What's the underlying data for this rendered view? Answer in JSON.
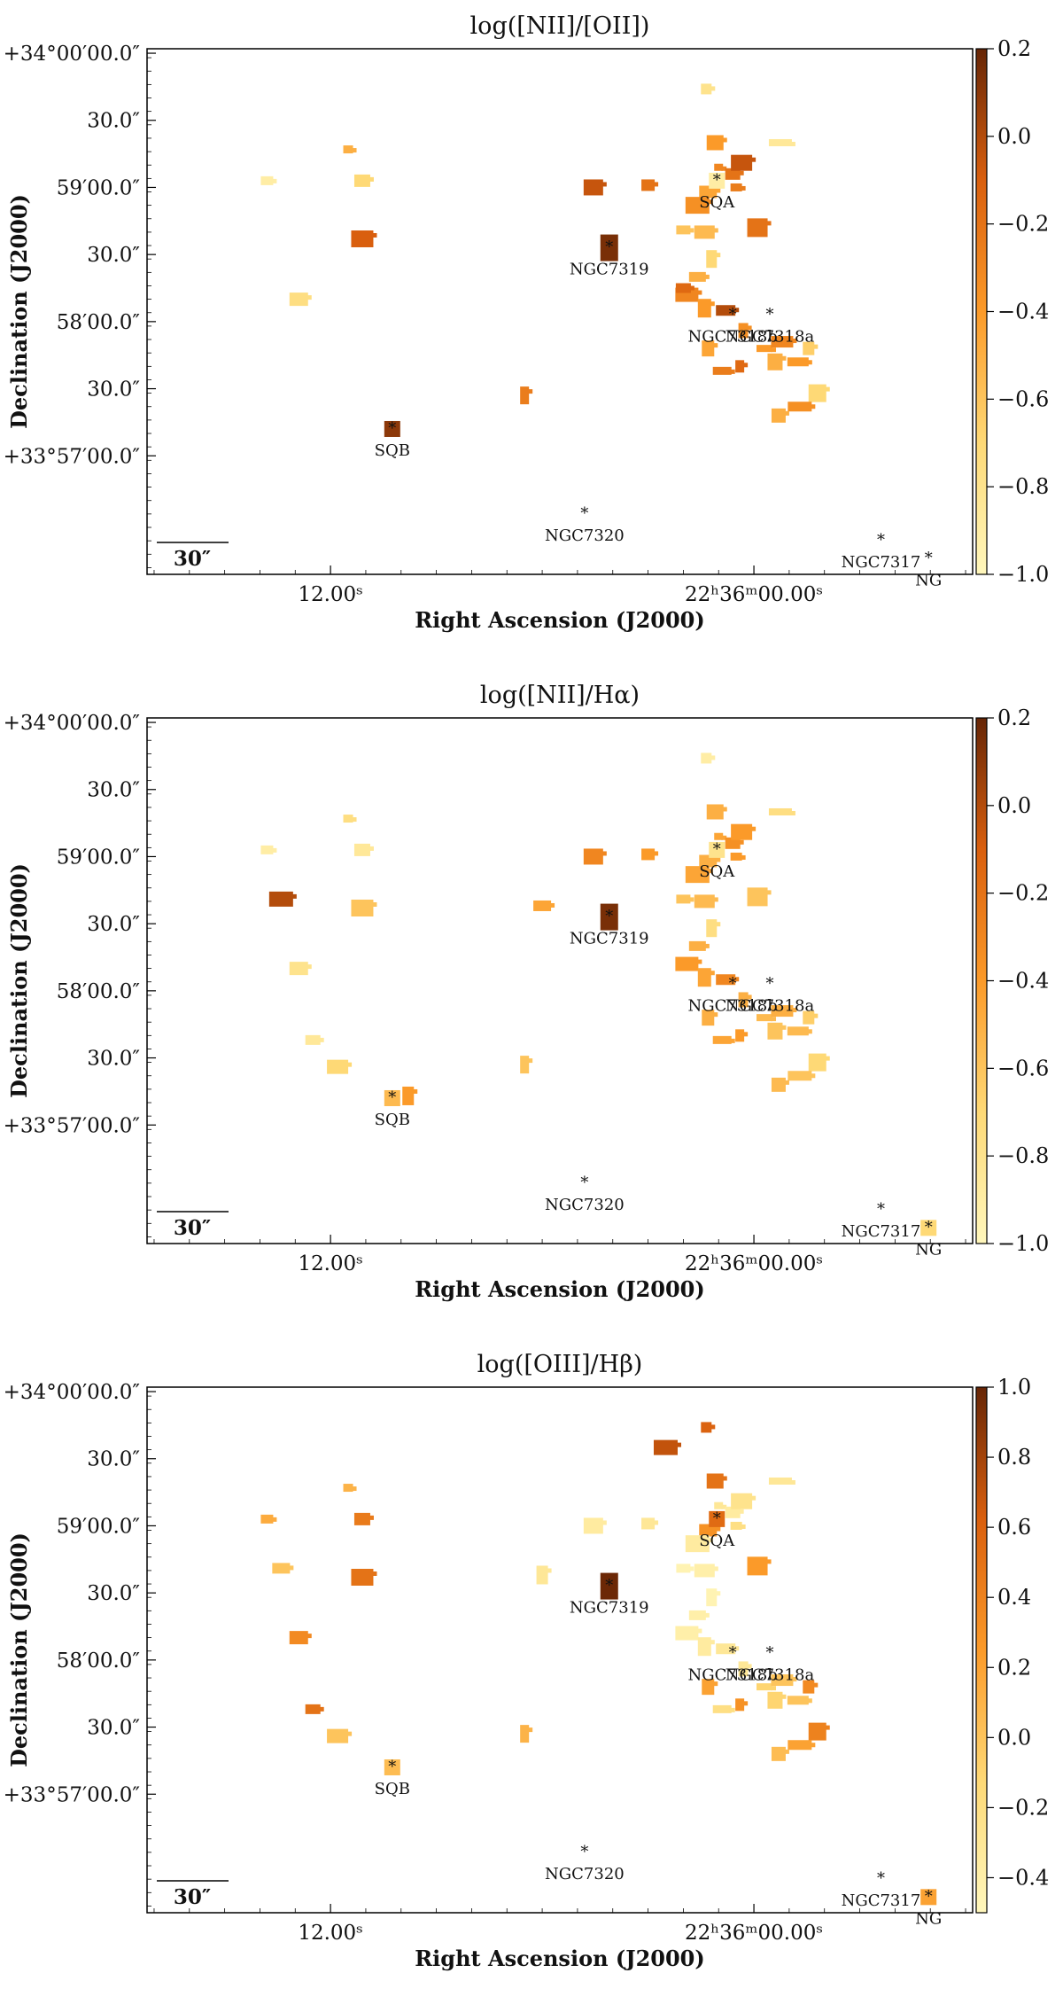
{
  "chart_data": [
    {
      "type": "heatmap",
      "title": "log([NII]/[OII])",
      "xlabel": "Right Ascension (J2000)",
      "ylabel": "Declination (J2000)",
      "xticks": [
        "12.00ˢ",
        "22ʰ36ᵐ00.00ˢ"
      ],
      "yticks": [
        "+34°00′00.0″",
        "30.0″",
        "59′00.0″",
        "30.0″",
        "58′00.0″",
        "30.0″",
        "+33°57′00.0″"
      ],
      "colorbar": {
        "min": -1.0,
        "max": 0.2,
        "ticks": [
          "0.2",
          "0.0",
          "−0.2",
          "−0.4",
          "−0.6",
          "−0.8",
          "−1.0"
        ]
      },
      "scalebar": "30″",
      "galaxies": [
        {
          "name": "SQA",
          "ra_s": 1.05,
          "dec_s": 63,
          "value": -0.9
        },
        {
          "name": "NGC7319",
          "ra_s": 4.1,
          "dec_s": 33,
          "value": 0.15
        },
        {
          "name": "NGC7318b",
          "ra_s": 0.6,
          "dec_s": 3
        },
        {
          "name": "NGC7318a",
          "ra_s": -0.45,
          "dec_s": 3
        },
        {
          "name": "SQB",
          "ra_s": 10.25,
          "dec_s": -48,
          "value": 0.1
        },
        {
          "name": "NGC7320",
          "ra_s": 4.8,
          "dec_s": -86
        },
        {
          "name": "NGC7317",
          "ra_s": -3.6,
          "dec_s": -98
        },
        {
          "name": "NG",
          "ra_s": -4.95,
          "dec_s": -106
        }
      ],
      "regions": [
        {
          "ra_s": 1.0,
          "dec_s": 69,
          "value": -0.3
        },
        {
          "ra_s": 0.6,
          "dec_s": 66,
          "value": -0.2
        },
        {
          "ra_s": 0.35,
          "dec_s": 71,
          "value": -0.05
        },
        {
          "ra_s": 0.5,
          "dec_s": 60,
          "value": -0.25
        },
        {
          "ra_s": 1.3,
          "dec_s": 58,
          "value": -0.45
        },
        {
          "ra_s": 1.6,
          "dec_s": 52,
          "value": -0.35
        },
        {
          "ra_s": 2.0,
          "dec_s": 41,
          "value": -0.6
        },
        {
          "ra_s": 1.4,
          "dec_s": 40,
          "value": -0.55
        },
        {
          "ra_s": 1.2,
          "dec_s": 28,
          "value": -0.7
        },
        {
          "ra_s": 1.6,
          "dec_s": 20,
          "value": -0.5
        },
        {
          "ra_s": 1.9,
          "dec_s": 12,
          "value": -0.3
        },
        {
          "ra_s": 1.4,
          "dec_s": 6,
          "value": -0.4
        },
        {
          "ra_s": 0.8,
          "dec_s": 5,
          "value": 0.0
        },
        {
          "ra_s": 0.3,
          "dec_s": -4,
          "value": -0.35
        },
        {
          "ra_s": -0.3,
          "dec_s": -12,
          "value": -0.4
        },
        {
          "ra_s": -0.8,
          "dec_s": -9,
          "value": -0.3
        },
        {
          "ra_s": 1.3,
          "dec_s": -12,
          "value": -0.45
        },
        {
          "ra_s": 0.9,
          "dec_s": -22,
          "value": -0.25
        },
        {
          "ra_s": 0.4,
          "dec_s": -20,
          "value": -0.15
        },
        {
          "ra_s": -0.6,
          "dec_s": -18,
          "value": -0.5
        },
        {
          "ra_s": -1.25,
          "dec_s": -18,
          "value": -0.4
        },
        {
          "ra_s": -1.55,
          "dec_s": -12,
          "value": -0.65
        },
        {
          "ra_s": -1.8,
          "dec_s": -32,
          "value": -0.7
        },
        {
          "ra_s": -1.3,
          "dec_s": -38,
          "value": -0.35
        },
        {
          "ra_s": -0.7,
          "dec_s": -42,
          "value": -0.5
        },
        {
          "ra_s": -0.1,
          "dec_s": 42,
          "value": -0.2
        },
        {
          "ra_s": 1.35,
          "dec_s": 104,
          "value": -0.8
        },
        {
          "ra_s": 1.1,
          "dec_s": 80,
          "value": -0.4
        },
        {
          "ra_s": -0.75,
          "dec_s": 80,
          "value": -0.85
        },
        {
          "ra_s": 3.0,
          "dec_s": 61,
          "value": -0.2
        },
        {
          "ra_s": 4.55,
          "dec_s": 60,
          "value": -0.05
        },
        {
          "ra_s": 11.5,
          "dec_s": 77,
          "value": -0.5
        },
        {
          "ra_s": 11.1,
          "dec_s": 63,
          "value": -0.7
        },
        {
          "ra_s": 11.1,
          "dec_s": 37,
          "value": -0.1
        },
        {
          "ra_s": 13.8,
          "dec_s": 63,
          "value": -0.9
        },
        {
          "ra_s": 12.9,
          "dec_s": 10,
          "value": -0.75
        },
        {
          "ra_s": 6.5,
          "dec_s": -33,
          "value": -0.25
        },
        {
          "ra_s": 2.0,
          "dec_s": 15,
          "value": -0.15
        }
      ]
    },
    {
      "type": "heatmap",
      "title": "log([NII]/Hα)",
      "xlabel": "Right Ascension (J2000)",
      "ylabel": "Declination (J2000)",
      "xticks": [
        "12.00ˢ",
        "22ʰ36ᵐ00.00ˢ"
      ],
      "yticks": [
        "+34°00′00.0″",
        "30.0″",
        "59′00.0″",
        "30.0″",
        "58′00.0″",
        "30.0″",
        "+33°57′00.0″"
      ],
      "colorbar": {
        "min": -1.0,
        "max": 0.2,
        "ticks": [
          "0.2",
          "0.0",
          "−0.2",
          "−0.4",
          "−0.6",
          "−0.8",
          "−1.0"
        ]
      },
      "scalebar": "30″",
      "galaxies": [
        {
          "name": "SQA",
          "ra_s": 1.05,
          "dec_s": 63,
          "value": -0.8
        },
        {
          "name": "NGC7319",
          "ra_s": 4.1,
          "dec_s": 33,
          "value": 0.15
        },
        {
          "name": "NGC7318b",
          "ra_s": 0.6,
          "dec_s": 3
        },
        {
          "name": "NGC7318a",
          "ra_s": -0.45,
          "dec_s": 3
        },
        {
          "name": "SQB",
          "ra_s": 10.25,
          "dec_s": -48,
          "value": -0.55
        },
        {
          "name": "NGC7320",
          "ra_s": 4.8,
          "dec_s": -86
        },
        {
          "name": "NGC7317",
          "ra_s": -3.6,
          "dec_s": -98
        },
        {
          "name": "NG",
          "ra_s": -4.95,
          "dec_s": -106,
          "value": -0.7
        }
      ],
      "regions": [
        {
          "ra_s": 1.0,
          "dec_s": 69,
          "value": -0.45
        },
        {
          "ra_s": 0.6,
          "dec_s": 66,
          "value": -0.35
        },
        {
          "ra_s": 0.35,
          "dec_s": 71,
          "value": -0.4
        },
        {
          "ra_s": 0.5,
          "dec_s": 60,
          "value": -0.4
        },
        {
          "ra_s": 1.3,
          "dec_s": 58,
          "value": -0.5
        },
        {
          "ra_s": 1.6,
          "dec_s": 52,
          "value": -0.45
        },
        {
          "ra_s": 2.0,
          "dec_s": 41,
          "value": -0.6
        },
        {
          "ra_s": 1.4,
          "dec_s": 40,
          "value": -0.55
        },
        {
          "ra_s": 1.2,
          "dec_s": 28,
          "value": -0.75
        },
        {
          "ra_s": 1.6,
          "dec_s": 20,
          "value": -0.5
        },
        {
          "ra_s": 1.9,
          "dec_s": 12,
          "value": -0.4
        },
        {
          "ra_s": 1.4,
          "dec_s": 6,
          "value": -0.45
        },
        {
          "ra_s": 0.8,
          "dec_s": 5,
          "value": -0.3
        },
        {
          "ra_s": 0.3,
          "dec_s": -4,
          "value": -0.5
        },
        {
          "ra_s": -0.3,
          "dec_s": -12,
          "value": -0.55
        },
        {
          "ra_s": -0.8,
          "dec_s": -9,
          "value": -0.5
        },
        {
          "ra_s": 1.3,
          "dec_s": -12,
          "value": -0.5
        },
        {
          "ra_s": 0.9,
          "dec_s": -22,
          "value": -0.45
        },
        {
          "ra_s": 0.4,
          "dec_s": -20,
          "value": -0.4
        },
        {
          "ra_s": -0.6,
          "dec_s": -18,
          "value": -0.6
        },
        {
          "ra_s": -1.25,
          "dec_s": -18,
          "value": -0.55
        },
        {
          "ra_s": -1.55,
          "dec_s": -12,
          "value": -0.65
        },
        {
          "ra_s": -1.8,
          "dec_s": -32,
          "value": -0.7
        },
        {
          "ra_s": -1.3,
          "dec_s": -38,
          "value": -0.6
        },
        {
          "ra_s": -0.7,
          "dec_s": -42,
          "value": -0.55
        },
        {
          "ra_s": -0.1,
          "dec_s": 42,
          "value": -0.6
        },
        {
          "ra_s": 1.35,
          "dec_s": 104,
          "value": -0.9
        },
        {
          "ra_s": 1.1,
          "dec_s": 80,
          "value": -0.5
        },
        {
          "ra_s": -0.75,
          "dec_s": 80,
          "value": -0.75
        },
        {
          "ra_s": 3.0,
          "dec_s": 61,
          "value": -0.4
        },
        {
          "ra_s": 4.55,
          "dec_s": 60,
          "value": -0.3
        },
        {
          "ra_s": 11.5,
          "dec_s": 77,
          "value": -0.75
        },
        {
          "ra_s": 11.1,
          "dec_s": 63,
          "value": -0.85
        },
        {
          "ra_s": 11.1,
          "dec_s": 37,
          "value": -0.6
        },
        {
          "ra_s": 13.8,
          "dec_s": 63,
          "value": -0.9
        },
        {
          "ra_s": 12.9,
          "dec_s": 10,
          "value": -0.8
        },
        {
          "ra_s": 6.5,
          "dec_s": -33,
          "value": -0.6
        },
        {
          "ra_s": 12.5,
          "dec_s": -22,
          "value": -0.85
        },
        {
          "ra_s": 11.8,
          "dec_s": -34,
          "value": -0.7
        },
        {
          "ra_s": 9.8,
          "dec_s": -47,
          "value": -0.4
        },
        {
          "ra_s": 6.0,
          "dec_s": 38,
          "value": -0.45
        },
        {
          "ra_s": 13.4,
          "dec_s": 41,
          "value": 0.0
        }
      ]
    },
    {
      "type": "heatmap",
      "title": "log([OIII]/Hβ)",
      "xlabel": "Right Ascension (J2000)",
      "ylabel": "Declination (J2000)",
      "xticks": [
        "12.00ˢ",
        "22ʰ36ᵐ00.00ˢ"
      ],
      "yticks": [
        "+34°00′00.0″",
        "30.0″",
        "59′00.0″",
        "30.0″",
        "58′00.0″",
        "30.0″",
        "+33°57′00.0″"
      ],
      "colorbar": {
        "min": -0.5,
        "max": 1.0,
        "ticks": [
          "1.0",
          "0.8",
          "0.6",
          "0.4",
          "0.2",
          "0.0",
          "−0.2",
          "−0.4"
        ]
      },
      "scalebar": "30″",
      "galaxies": [
        {
          "name": "SQA",
          "ra_s": 1.05,
          "dec_s": 63,
          "value": 0.55
        },
        {
          "name": "NGC7319",
          "ra_s": 4.1,
          "dec_s": 33,
          "value": 0.98
        },
        {
          "name": "NGC7318b",
          "ra_s": 0.6,
          "dec_s": 3
        },
        {
          "name": "NGC7318a",
          "ra_s": -0.45,
          "dec_s": 3
        },
        {
          "name": "SQB",
          "ra_s": 10.25,
          "dec_s": -48,
          "value": 0.05
        },
        {
          "name": "NGC7320",
          "ra_s": 4.8,
          "dec_s": -86
        },
        {
          "name": "NGC7317",
          "ra_s": -3.6,
          "dec_s": -98
        },
        {
          "name": "NG",
          "ra_s": -4.95,
          "dec_s": -106,
          "value": 0.2
        }
      ],
      "regions": [
        {
          "ra_s": 1.0,
          "dec_s": 69,
          "value": -0.3
        },
        {
          "ra_s": 0.6,
          "dec_s": 66,
          "value": -0.35
        },
        {
          "ra_s": 0.35,
          "dec_s": 71,
          "value": -0.25
        },
        {
          "ra_s": 0.5,
          "dec_s": 60,
          "value": -0.2
        },
        {
          "ra_s": 1.3,
          "dec_s": 58,
          "value": 0.3
        },
        {
          "ra_s": 1.6,
          "dec_s": 52,
          "value": -0.35
        },
        {
          "ra_s": 2.0,
          "dec_s": 41,
          "value": -0.45
        },
        {
          "ra_s": 1.4,
          "dec_s": 40,
          "value": -0.4
        },
        {
          "ra_s": 1.2,
          "dec_s": 28,
          "value": -0.45
        },
        {
          "ra_s": 1.6,
          "dec_s": 20,
          "value": -0.4
        },
        {
          "ra_s": 1.9,
          "dec_s": 12,
          "value": -0.4
        },
        {
          "ra_s": 1.4,
          "dec_s": 6,
          "value": -0.35
        },
        {
          "ra_s": 0.8,
          "dec_s": 5,
          "value": -0.3
        },
        {
          "ra_s": 0.3,
          "dec_s": -4,
          "value": -0.3
        },
        {
          "ra_s": -0.3,
          "dec_s": -12,
          "value": -0.1
        },
        {
          "ra_s": -0.8,
          "dec_s": -9,
          "value": 0.0
        },
        {
          "ra_s": 1.3,
          "dec_s": -12,
          "value": 0.2
        },
        {
          "ra_s": 0.9,
          "dec_s": -22,
          "value": -0.2
        },
        {
          "ra_s": 0.4,
          "dec_s": -20,
          "value": 0.3
        },
        {
          "ra_s": -0.6,
          "dec_s": -18,
          "value": -0.1
        },
        {
          "ra_s": -1.25,
          "dec_s": -18,
          "value": 0.0
        },
        {
          "ra_s": -1.55,
          "dec_s": -12,
          "value": 0.35
        },
        {
          "ra_s": -1.8,
          "dec_s": -32,
          "value": 0.4
        },
        {
          "ra_s": -1.3,
          "dec_s": -38,
          "value": 0.2
        },
        {
          "ra_s": -0.7,
          "dec_s": -42,
          "value": 0.05
        },
        {
          "ra_s": -0.1,
          "dec_s": 42,
          "value": 0.25
        },
        {
          "ra_s": 1.35,
          "dec_s": 104,
          "value": 0.6
        },
        {
          "ra_s": 1.1,
          "dec_s": 80,
          "value": 0.5
        },
        {
          "ra_s": -0.75,
          "dec_s": 80,
          "value": -0.3
        },
        {
          "ra_s": 3.0,
          "dec_s": 61,
          "value": -0.3
        },
        {
          "ra_s": 4.55,
          "dec_s": 60,
          "value": -0.35
        },
        {
          "ra_s": 11.5,
          "dec_s": 77,
          "value": 0.1
        },
        {
          "ra_s": 11.1,
          "dec_s": 63,
          "value": 0.45
        },
        {
          "ra_s": 11.1,
          "dec_s": 37,
          "value": 0.5
        },
        {
          "ra_s": 13.8,
          "dec_s": 63,
          "value": 0.15
        },
        {
          "ra_s": 12.9,
          "dec_s": 10,
          "value": 0.35
        },
        {
          "ra_s": 6.5,
          "dec_s": -33,
          "value": 0.1
        },
        {
          "ra_s": 12.5,
          "dec_s": -22,
          "value": 0.5
        },
        {
          "ra_s": 11.8,
          "dec_s": -34,
          "value": 0.0
        },
        {
          "ra_s": 6.0,
          "dec_s": 38,
          "value": -0.3
        },
        {
          "ra_s": 13.4,
          "dec_s": 41,
          "value": 0.0
        },
        {
          "ra_s": 2.5,
          "dec_s": 95,
          "value": 0.7
        }
      ]
    }
  ]
}
